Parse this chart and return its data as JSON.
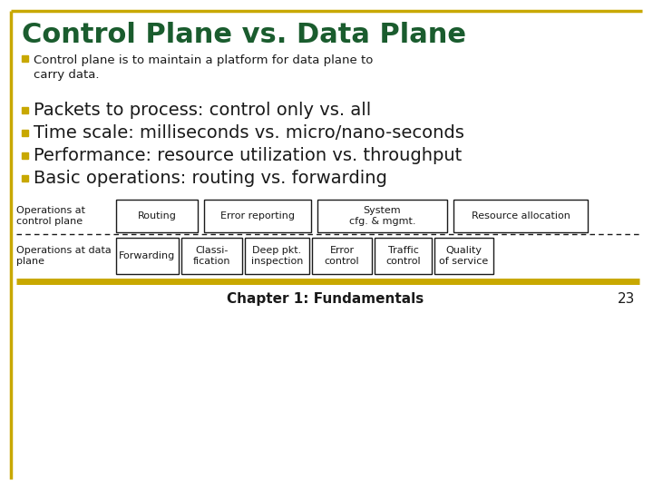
{
  "title": "Control Plane vs. Data Plane",
  "title_color": "#1a5c2e",
  "title_fontsize": 22,
  "bg_color": "#ffffff",
  "gold_color": "#c8a800",
  "dark_color": "#1a1a1a",
  "bullet1_line1": "Control plane is to maintain a platform for data plane to",
  "bullet1_line2": "carry data.",
  "bullets": [
    "Packets to process: control only vs. all",
    "Time scale: milliseconds vs. micro/nano-seconds",
    "Performance: resource utilization vs. throughput",
    "Basic operations: routing vs. forwarding"
  ],
  "control_plane_label": "Operations at\ncontrol plane",
  "data_plane_label": "Operations at data\nplane",
  "control_boxes": [
    "Routing",
    "Error reporting",
    "System\ncfg. & mgmt.",
    "Resource allocation"
  ],
  "data_boxes": [
    "Forwarding",
    "Classi-\nfication",
    "Deep pkt.\ninspection",
    "Error\ncontrol",
    "Traffic\ncontrol",
    "Quality\nof service"
  ],
  "footer_text": "Chapter 1: Fundamentals",
  "footer_page": "23",
  "footer_fontsize": 11
}
